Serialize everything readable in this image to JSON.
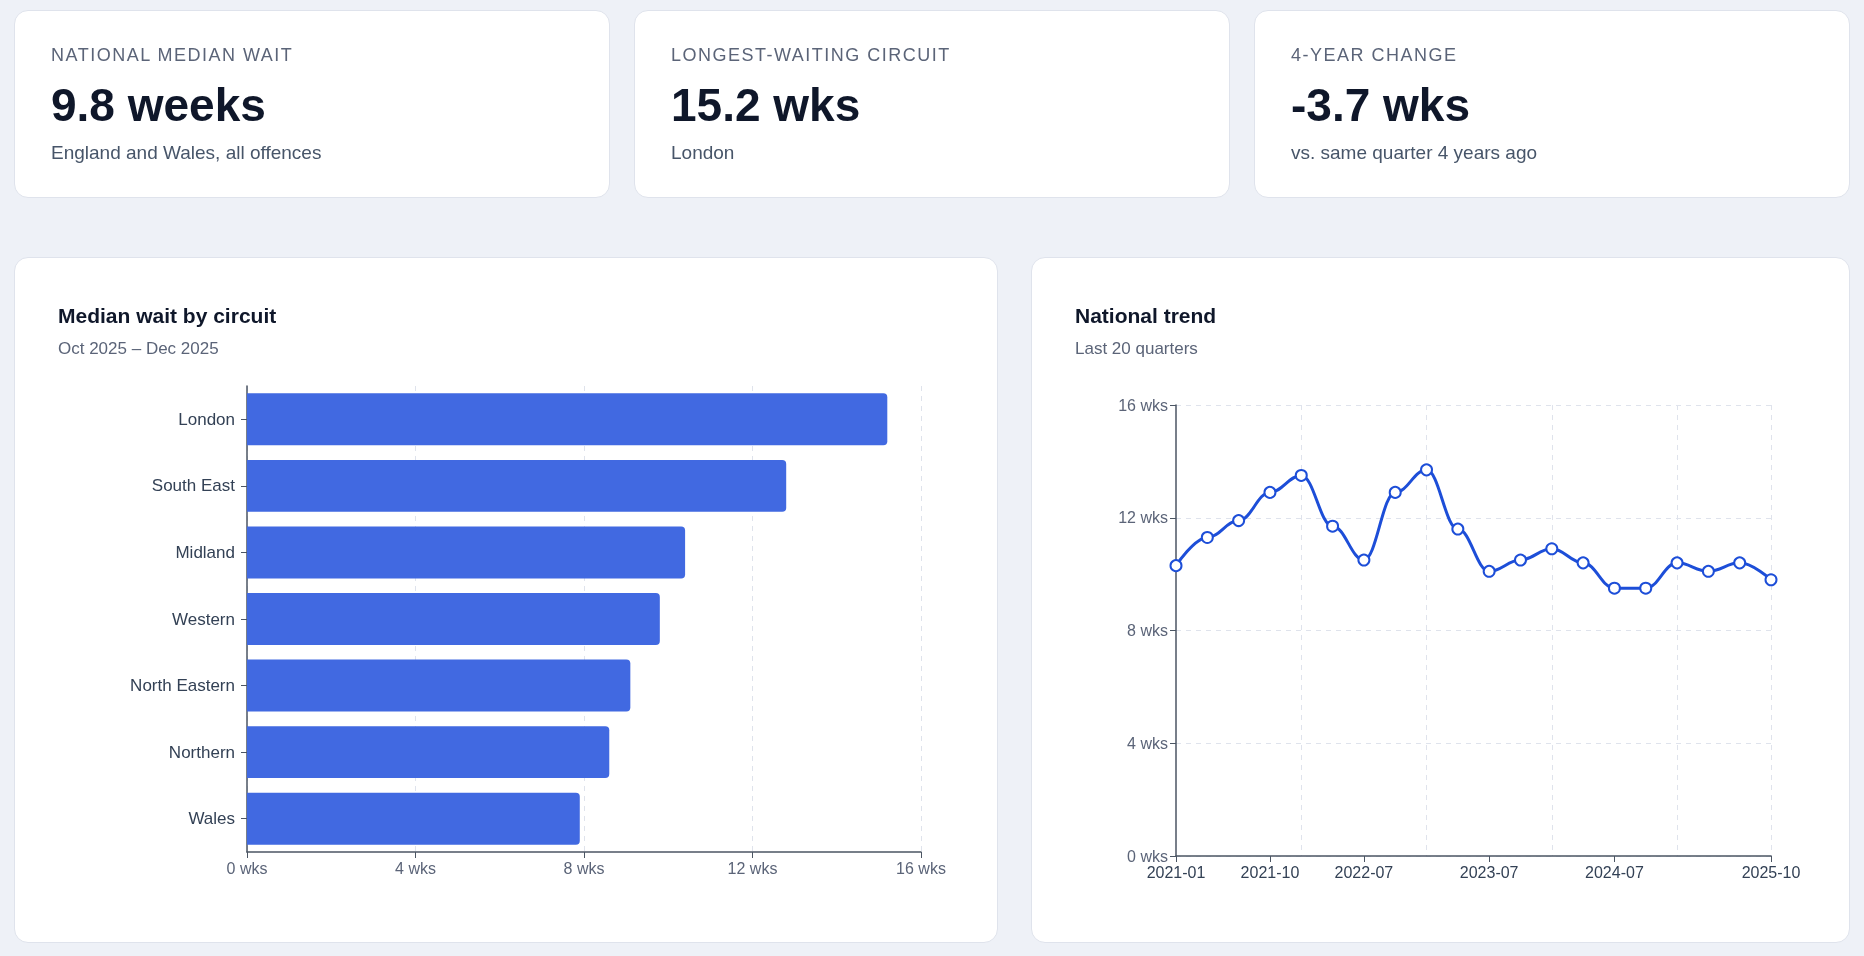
{
  "chart_data": [
    {
      "type": "other",
      "title": "NATIONAL MEDIAN WAIT",
      "annotations": [
        "9.8 weeks",
        "England and Wales, all offences"
      ]
    },
    {
      "type": "other",
      "title": "LONGEST-WAITING CIRCUIT",
      "annotations": [
        "15.2 wks",
        "London"
      ]
    },
    {
      "type": "other",
      "title": "4-YEAR CHANGE",
      "annotations": [
        "-3.7 wks",
        "vs. same quarter 4 years ago"
      ]
    },
    {
      "type": "bar",
      "title": "Median wait by circuit",
      "subtitle": "Oct 2025 – Dec 2025",
      "orientation": "horizontal",
      "categories": [
        "London",
        "South East",
        "Midland",
        "Western",
        "North Eastern",
        "Northern",
        "Wales"
      ],
      "values": [
        15.2,
        12.8,
        10.4,
        9.8,
        9.1,
        8.6,
        7.9
      ],
      "color": "#4169e1",
      "xlim": [
        0,
        16
      ],
      "xticks": [
        {
          "value": 0,
          "label": "0 wks"
        },
        {
          "value": 4,
          "label": "4 wks"
        },
        {
          "value": 8,
          "label": "8 wks"
        },
        {
          "value": 12,
          "label": "12 wks"
        },
        {
          "value": 16,
          "label": "16 wks"
        }
      ],
      "grid": "x"
    },
    {
      "type": "line",
      "title": "National trend",
      "subtitle": "Last 20 quarters",
      "categories": [
        "2021-01",
        null,
        null,
        "2021-10",
        null,
        null,
        "2022-07",
        null,
        null,
        null,
        "2023-07",
        null,
        null,
        null,
        "2024-07",
        null,
        null,
        null,
        null,
        "2025-10"
      ],
      "series": [
        {
          "color": "#1d4ed8",
          "values": [
            10.3,
            11.3,
            11.9,
            12.9,
            13.5,
            11.7,
            10.5,
            12.9,
            13.7,
            11.6,
            10.1,
            10.5,
            10.9,
            10.4,
            9.5,
            9.5,
            10.4,
            10.1,
            10.4,
            9.8
          ]
        }
      ],
      "ylim": [
        0,
        16
      ],
      "yticks": [
        {
          "value": 0,
          "label": "0 wks"
        },
        {
          "value": 4,
          "label": "4 wks"
        },
        {
          "value": 8,
          "label": "8 wks"
        },
        {
          "value": 12,
          "label": "12 wks"
        },
        {
          "value": 16,
          "label": "16 wks"
        }
      ],
      "grid": true,
      "marker": "circle"
    }
  ]
}
